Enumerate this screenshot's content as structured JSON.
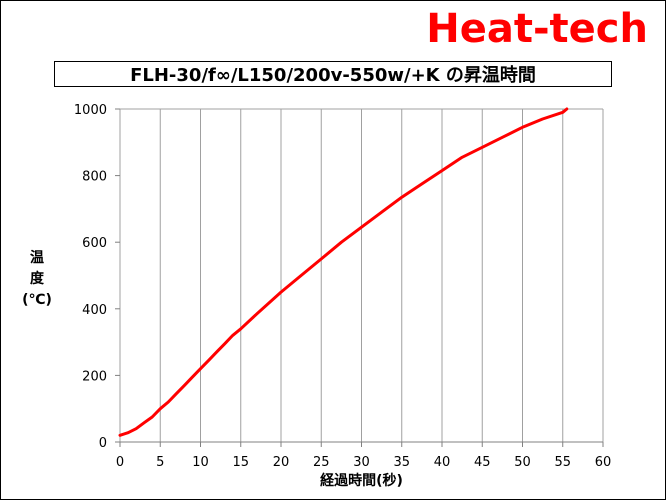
{
  "brand": "Heat-tech",
  "title": "FLH-30/f∞/L150/200v-550w/+K の昇温時間",
  "chart_data": {
    "type": "line",
    "title": "FLH-30/f∞/L150/200v-550w/+K の昇温時間",
    "xlabel": "経過時間(秒)",
    "ylabel": [
      "温",
      "度",
      "(℃)"
    ],
    "xlim": [
      0,
      60
    ],
    "ylim": [
      0,
      1000
    ],
    "xticks": [
      "0",
      "5",
      "10",
      "15",
      "20",
      "25",
      "30",
      "35",
      "40",
      "45",
      "50",
      "55",
      "60"
    ],
    "yticks": [
      "0",
      "200",
      "400",
      "600",
      "800",
      "1000"
    ],
    "grid": "vertical",
    "series": [
      {
        "color": "#ff0000",
        "x": [
          0,
          1,
          2,
          3,
          4,
          5,
          6,
          7,
          8,
          9,
          10,
          11,
          12,
          13,
          14,
          15,
          17,
          20,
          22.5,
          25,
          27.5,
          30,
          32.5,
          35,
          37.5,
          40,
          42.5,
          45,
          47.5,
          50,
          52.5,
          55,
          55.5
        ],
        "y": [
          20,
          28,
          40,
          58,
          75,
          100,
          120,
          145,
          170,
          195,
          220,
          245,
          270,
          295,
          320,
          340,
          385,
          450,
          500,
          550,
          600,
          645,
          690,
          735,
          775,
          815,
          855,
          885,
          915,
          945,
          970,
          990,
          1000
        ]
      }
    ]
  }
}
